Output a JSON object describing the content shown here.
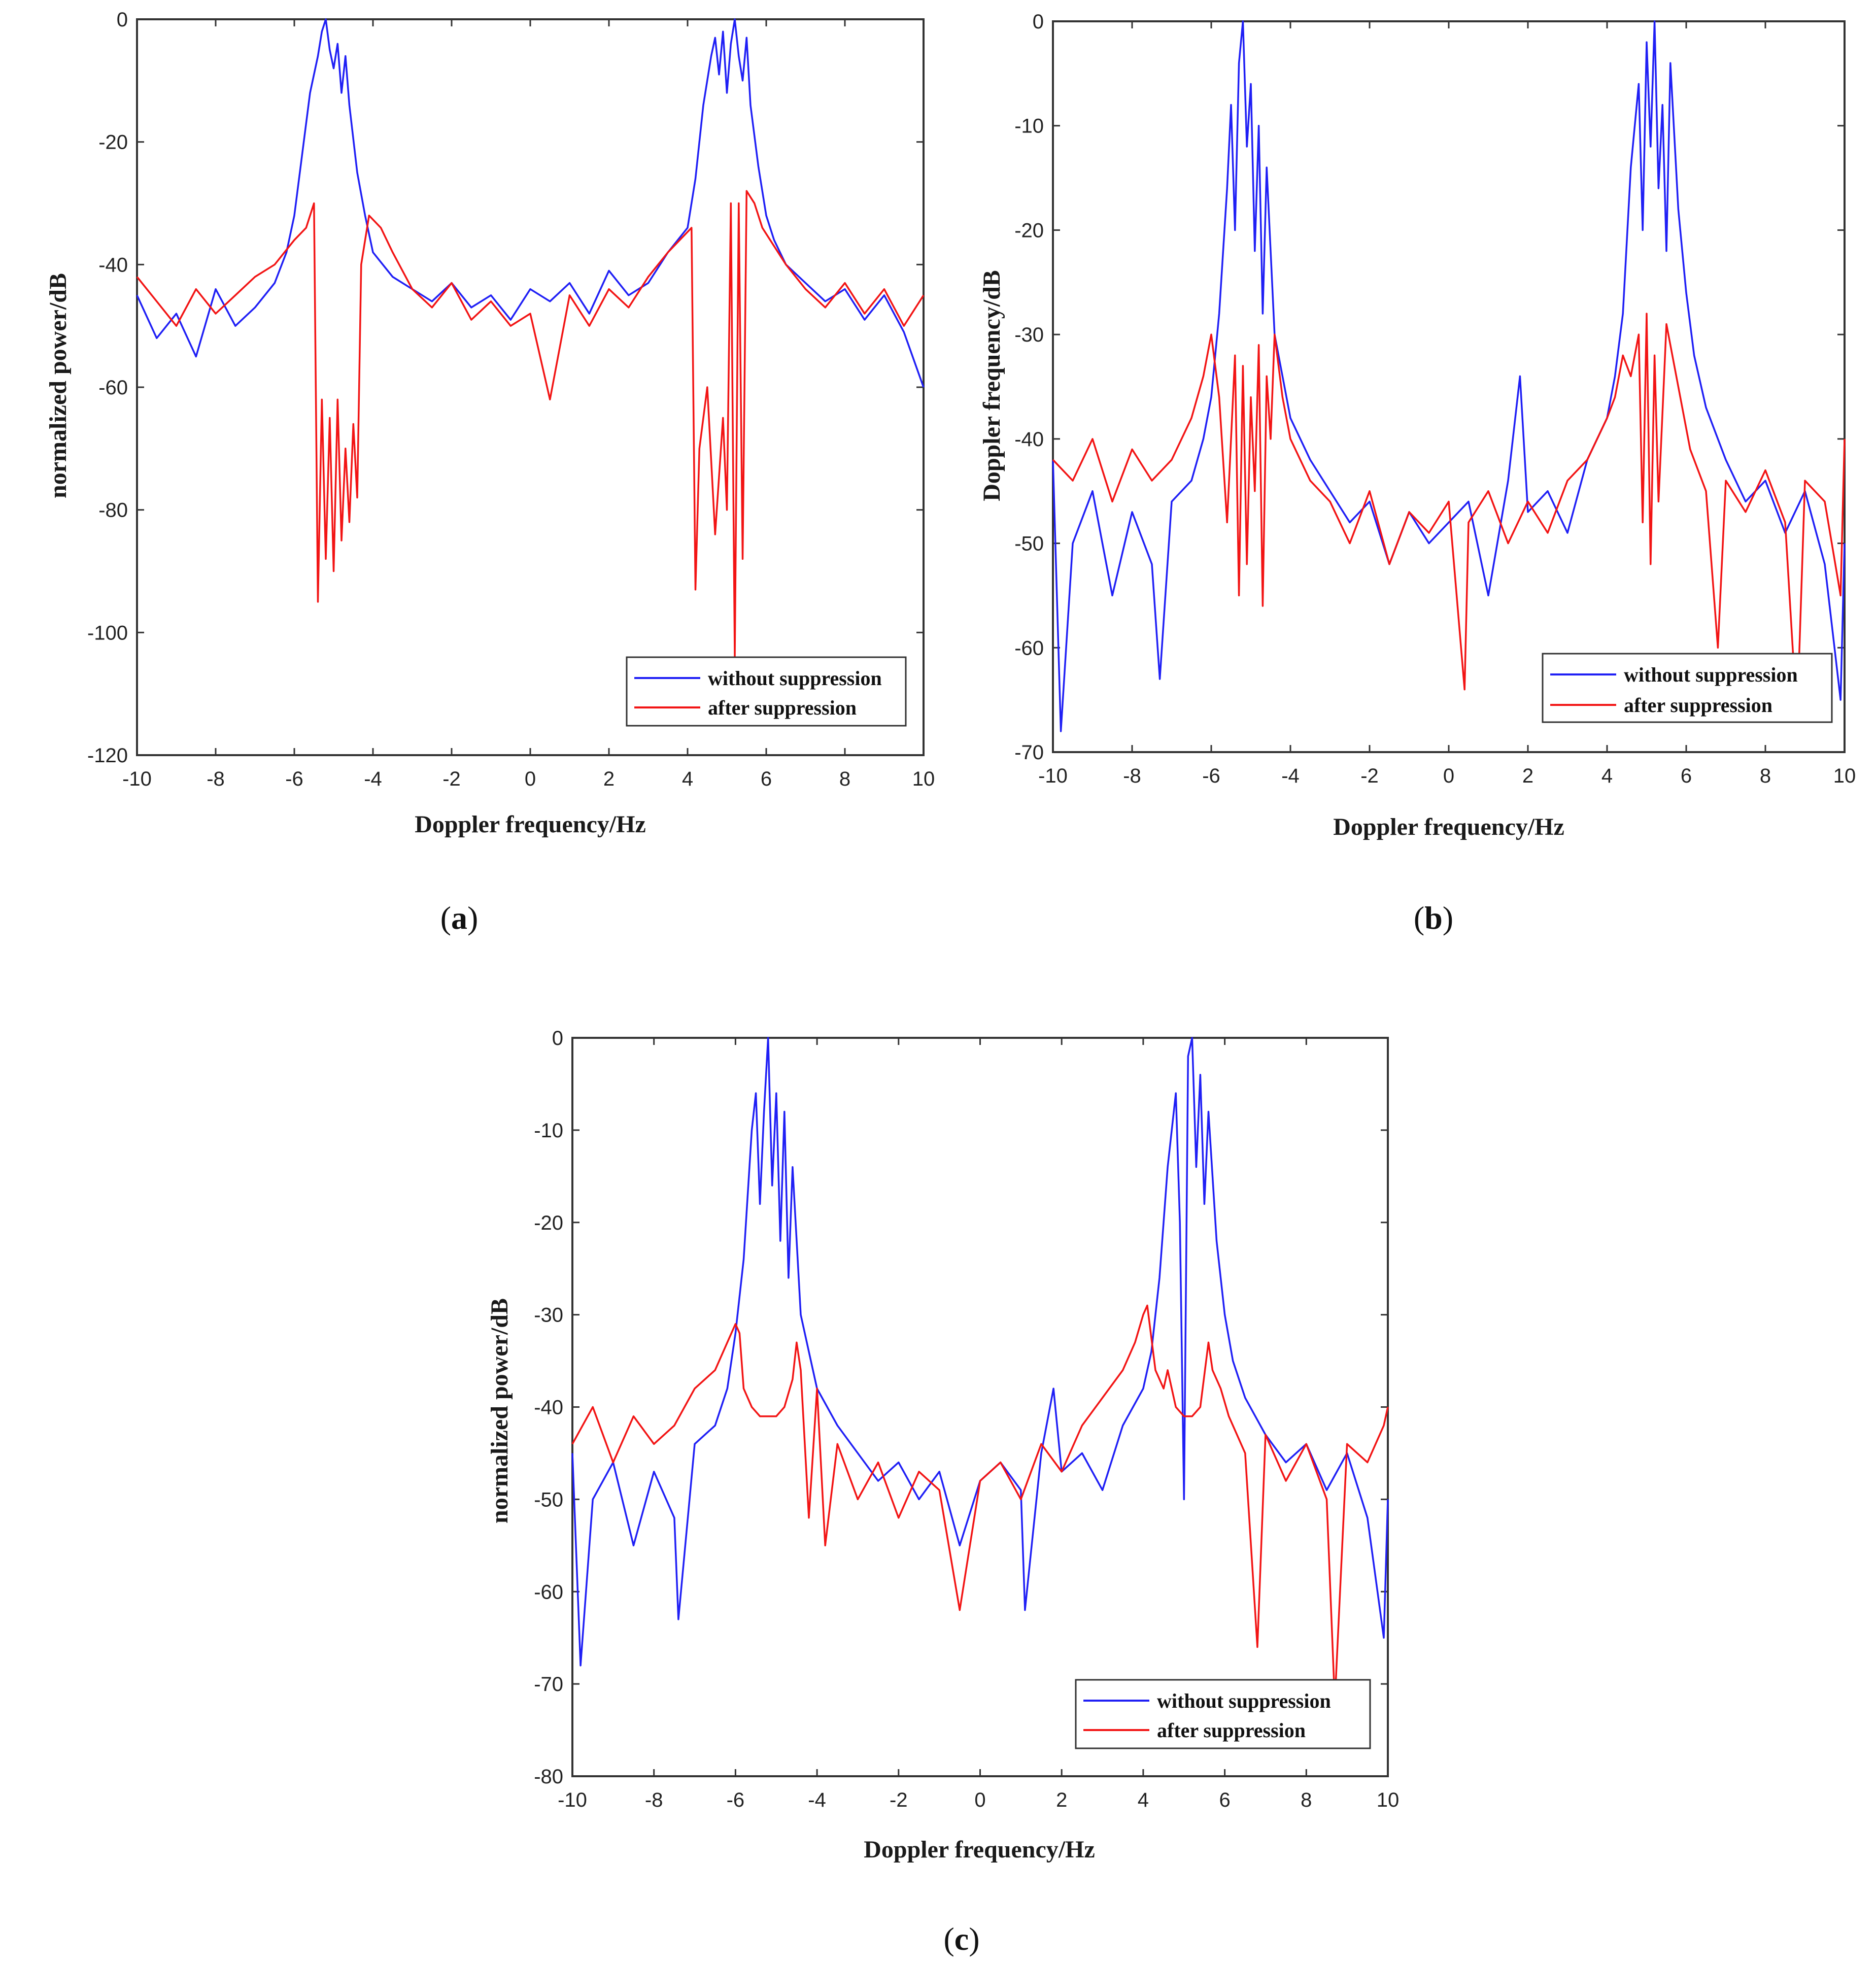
{
  "colors": {
    "without": "#1f1ff5",
    "after": "#f21414",
    "axis": "#333333",
    "grid": "#e6e6e6"
  },
  "chart_data": [
    {
      "type": "line",
      "panel": "a",
      "caption": {
        "open": "(",
        "letter": "a",
        "close": ")"
      },
      "xlabel": "Doppler frequency/Hz",
      "ylabel": "normalized power/dB",
      "xlim": [
        -10,
        10
      ],
      "ylim": [
        -120,
        0
      ],
      "xticks": [
        -10,
        -8,
        -6,
        -4,
        -2,
        0,
        2,
        4,
        6,
        8,
        10
      ],
      "yticks": [
        0,
        -20,
        -40,
        -60,
        -80,
        -100,
        -120
      ],
      "legend": [
        "without suppression",
        "after suppression"
      ],
      "legend_position": "bottom-right",
      "series": [
        {
          "name": "without suppression",
          "x": [
            -10,
            -9.5,
            -9,
            -8.5,
            -8,
            -7.5,
            -7,
            -6.5,
            -6.2,
            -6.0,
            -5.8,
            -5.6,
            -5.4,
            -5.3,
            -5.2,
            -5.1,
            -5.0,
            -4.9,
            -4.8,
            -4.7,
            -4.6,
            -4.4,
            -4.2,
            -4.0,
            -3.5,
            -3,
            -2.5,
            -2,
            -1.5,
            -1,
            -0.5,
            0,
            0.5,
            1,
            1.5,
            2,
            2.5,
            3,
            3.5,
            4.0,
            4.2,
            4.4,
            4.6,
            4.7,
            4.8,
            4.9,
            5.0,
            5.1,
            5.2,
            5.3,
            5.4,
            5.5,
            5.6,
            5.8,
            6.0,
            6.2,
            6.5,
            7,
            7.5,
            8,
            8.5,
            9,
            9.5,
            10
          ],
          "y": [
            -45,
            -52,
            -48,
            -55,
            -44,
            -50,
            -47,
            -43,
            -38,
            -32,
            -22,
            -12,
            -6,
            -2,
            0,
            -5,
            -8,
            -4,
            -12,
            -6,
            -14,
            -25,
            -32,
            -38,
            -42,
            -44,
            -46,
            -43,
            -47,
            -45,
            -49,
            -44,
            -46,
            -43,
            -48,
            -41,
            -45,
            -43,
            -38,
            -34,
            -26,
            -14,
            -6,
            -3,
            -9,
            -2,
            -12,
            -4,
            0,
            -6,
            -10,
            -3,
            -14,
            -24,
            -32,
            -36,
            -40,
            -43,
            -46,
            -44,
            -49,
            -45,
            -51,
            -60
          ]
        },
        {
          "name": "after suppression",
          "x": [
            -10,
            -9.5,
            -9,
            -8.5,
            -8,
            -7.5,
            -7,
            -6.5,
            -6.0,
            -5.7,
            -5.5,
            -5.4,
            -5.3,
            -5.2,
            -5.1,
            -5.0,
            -4.9,
            -4.8,
            -4.7,
            -4.6,
            -4.5,
            -4.4,
            -4.3,
            -4.1,
            -3.8,
            -3.5,
            -3,
            -2.5,
            -2,
            -1.5,
            -1,
            -0.5,
            0,
            0.5,
            1,
            1.5,
            2,
            2.5,
            3,
            3.5,
            3.8,
            4.1,
            4.2,
            4.3,
            4.5,
            4.7,
            4.9,
            5.0,
            5.1,
            5.2,
            5.3,
            5.4,
            5.5,
            5.7,
            5.9,
            6.1,
            6.5,
            7,
            7.5,
            8,
            8.5,
            9,
            9.5,
            10
          ],
          "y": [
            -42,
            -46,
            -50,
            -44,
            -48,
            -45,
            -42,
            -40,
            -36,
            -34,
            -30,
            -95,
            -62,
            -88,
            -65,
            -90,
            -62,
            -85,
            -70,
            -82,
            -66,
            -78,
            -40,
            -32,
            -34,
            -38,
            -44,
            -47,
            -43,
            -49,
            -46,
            -50,
            -48,
            -62,
            -45,
            -50,
            -44,
            -47,
            -42,
            -38,
            -36,
            -34,
            -93,
            -70,
            -60,
            -84,
            -65,
            -80,
            -30,
            -104,
            -30,
            -88,
            -28,
            -30,
            -34,
            -36,
            -40,
            -44,
            -47,
            -43,
            -48,
            -44,
            -50,
            -45
          ]
        }
      ]
    },
    {
      "type": "line",
      "panel": "b",
      "caption": {
        "open": "(",
        "letter": "b",
        "close": ")"
      },
      "xlabel": "Doppler frequency/Hz",
      "ylabel": "Doppler frequency/dB",
      "xlim": [
        -10,
        10
      ],
      "ylim": [
        -70,
        0
      ],
      "xticks": [
        -10,
        -8,
        -6,
        -4,
        -2,
        0,
        2,
        4,
        6,
        8,
        10
      ],
      "yticks": [
        0,
        -10,
        -20,
        -30,
        -40,
        -50,
        -60,
        -70
      ],
      "legend": [
        "without suppression",
        "after suppression"
      ],
      "legend_position": "bottom-right",
      "series": [
        {
          "name": "without suppression",
          "x": [
            -10,
            -9.8,
            -9.5,
            -9,
            -8.5,
            -8,
            -7.5,
            -7.3,
            -7,
            -6.5,
            -6.2,
            -6.0,
            -5.8,
            -5.6,
            -5.5,
            -5.4,
            -5.3,
            -5.2,
            -5.1,
            -5.0,
            -4.9,
            -4.8,
            -4.7,
            -4.6,
            -4.4,
            -4.2,
            -4.0,
            -3.5,
            -3,
            -2.5,
            -2,
            -1.5,
            -1,
            -0.5,
            0,
            0.5,
            1,
            1.5,
            1.8,
            2,
            2.5,
            3,
            3.5,
            4.0,
            4.2,
            4.4,
            4.6,
            4.8,
            4.9,
            5.0,
            5.1,
            5.2,
            5.3,
            5.4,
            5.5,
            5.6,
            5.8,
            6.0,
            6.2,
            6.5,
            7,
            7.5,
            8,
            8.5,
            9,
            9.5,
            9.9,
            10
          ],
          "y": [
            -42,
            -68,
            -50,
            -45,
            -55,
            -47,
            -52,
            -63,
            -46,
            -44,
            -40,
            -36,
            -28,
            -16,
            -8,
            -20,
            -4,
            0,
            -12,
            -6,
            -22,
            -10,
            -28,
            -14,
            -30,
            -34,
            -38,
            -42,
            -45,
            -48,
            -46,
            -52,
            -47,
            -50,
            -48,
            -46,
            -55,
            -44,
            -34,
            -47,
            -45,
            -49,
            -42,
            -38,
            -34,
            -28,
            -14,
            -6,
            -20,
            -2,
            -12,
            0,
            -16,
            -8,
            -22,
            -4,
            -18,
            -26,
            -32,
            -37,
            -42,
            -46,
            -44,
            -49,
            -45,
            -52,
            -65,
            -50
          ]
        },
        {
          "name": "after suppression",
          "x": [
            -10,
            -9.5,
            -9,
            -8.5,
            -8,
            -7.5,
            -7,
            -6.5,
            -6.2,
            -6.0,
            -5.8,
            -5.6,
            -5.4,
            -5.3,
            -5.2,
            -5.1,
            -5.0,
            -4.9,
            -4.8,
            -4.7,
            -4.6,
            -4.5,
            -4.4,
            -4.2,
            -4.0,
            -3.5,
            -3,
            -2.5,
            -2,
            -1.5,
            -1,
            -0.5,
            0,
            0.4,
            0.5,
            1,
            1.5,
            2,
            2.5,
            3,
            3.5,
            4.0,
            4.2,
            4.4,
            4.6,
            4.8,
            4.9,
            5.0,
            5.1,
            5.2,
            5.3,
            5.5,
            5.7,
            5.9,
            6.1,
            6.5,
            6.8,
            7,
            7.5,
            8,
            8.5,
            8.8,
            9,
            9.5,
            9.9,
            10
          ],
          "y": [
            -42,
            -44,
            -40,
            -46,
            -41,
            -44,
            -42,
            -38,
            -34,
            -30,
            -36,
            -48,
            -32,
            -55,
            -33,
            -52,
            -36,
            -45,
            -31,
            -56,
            -34,
            -40,
            -30,
            -36,
            -40,
            -44,
            -46,
            -50,
            -45,
            -52,
            -47,
            -49,
            -46,
            -64,
            -48,
            -45,
            -50,
            -46,
            -49,
            -44,
            -42,
            -38,
            -36,
            -32,
            -34,
            -30,
            -48,
            -28,
            -52,
            -32,
            -46,
            -29,
            -33,
            -37,
            -41,
            -45,
            -60,
            -44,
            -47,
            -43,
            -48,
            -67,
            -44,
            -46,
            -55,
            -40
          ]
        }
      ]
    },
    {
      "type": "line",
      "panel": "c",
      "caption": {
        "open": "(",
        "letter": "c",
        "close": ")"
      },
      "xlabel": "Doppler frequency/Hz",
      "ylabel": "normalized power/dB",
      "xlim": [
        -10,
        10
      ],
      "ylim": [
        -80,
        0
      ],
      "xticks": [
        -10,
        -8,
        -6,
        -4,
        -2,
        0,
        2,
        4,
        6,
        8,
        10
      ],
      "yticks": [
        0,
        -10,
        -20,
        -30,
        -40,
        -50,
        -60,
        -70,
        -80
      ],
      "legend": [
        "without suppression",
        "after suppression"
      ],
      "legend_position": "bottom-right",
      "series": [
        {
          "name": "without suppression",
          "x": [
            -10,
            -9.8,
            -9.5,
            -9,
            -8.5,
            -8,
            -7.5,
            -7.4,
            -7,
            -6.5,
            -6.2,
            -6.0,
            -5.8,
            -5.6,
            -5.5,
            -5.4,
            -5.3,
            -5.2,
            -5.1,
            -5.0,
            -4.9,
            -4.8,
            -4.7,
            -4.6,
            -4.4,
            -4.2,
            -4.0,
            -3.5,
            -3,
            -2.5,
            -2,
            -1.5,
            -1,
            -0.5,
            0,
            0.5,
            1,
            1.1,
            1.5,
            1.8,
            2,
            2.5,
            3,
            3.5,
            4.0,
            4.2,
            4.4,
            4.6,
            4.8,
            4.9,
            5.0,
            5.1,
            5.2,
            5.3,
            5.4,
            5.5,
            5.6,
            5.8,
            6.0,
            6.2,
            6.5,
            7,
            7.5,
            8,
            8.5,
            9,
            9.5,
            9.9,
            10
          ],
          "y": [
            -45,
            -68,
            -50,
            -46,
            -55,
            -47,
            -52,
            -63,
            -44,
            -42,
            -38,
            -32,
            -24,
            -10,
            -6,
            -18,
            -8,
            0,
            -16,
            -6,
            -22,
            -8,
            -26,
            -14,
            -30,
            -34,
            -38,
            -42,
            -45,
            -48,
            -46,
            -50,
            -47,
            -55,
            -48,
            -46,
            -49,
            -62,
            -45,
            -38,
            -47,
            -45,
            -49,
            -42,
            -38,
            -34,
            -26,
            -14,
            -6,
            -20,
            -50,
            -2,
            0,
            -14,
            -4,
            -18,
            -8,
            -22,
            -30,
            -35,
            -39,
            -43,
            -46,
            -44,
            -49,
            -45,
            -52,
            -65,
            -50
          ]
        },
        {
          "name": "after suppression",
          "x": [
            -10,
            -9.5,
            -9,
            -8.5,
            -8,
            -7.5,
            -7,
            -6.5,
            -6.2,
            -6.0,
            -5.9,
            -5.8,
            -5.6,
            -5.4,
            -5.2,
            -5.0,
            -4.8,
            -4.6,
            -4.5,
            -4.4,
            -4.2,
            -4.0,
            -3.8,
            -3.5,
            -3,
            -2.5,
            -2,
            -1.5,
            -1,
            -0.5,
            0,
            0.5,
            1,
            1.5,
            2,
            2.5,
            3,
            3.5,
            3.8,
            4.0,
            4.1,
            4.3,
            4.5,
            4.6,
            4.8,
            5.0,
            5.2,
            5.4,
            5.6,
            5.7,
            5.9,
            6.1,
            6.5,
            6.8,
            7,
            7.5,
            8,
            8.5,
            8.7,
            9,
            9.5,
            9.9,
            10
          ],
          "y": [
            -44,
            -40,
            -46,
            -41,
            -44,
            -42,
            -38,
            -36,
            -33,
            -31,
            -32,
            -38,
            -40,
            -41,
            -41,
            -41,
            -40,
            -37,
            -33,
            -36,
            -52,
            -38,
            -55,
            -44,
            -50,
            -46,
            -52,
            -47,
            -49,
            -62,
            -48,
            -46,
            -50,
            -44,
            -47,
            -42,
            -39,
            -36,
            -33,
            -30,
            -29,
            -36,
            -38,
            -36,
            -40,
            -41,
            -41,
            -40,
            -33,
            -36,
            -38,
            -41,
            -45,
            -66,
            -43,
            -48,
            -44,
            -50,
            -72,
            -44,
            -46,
            -42,
            -40
          ]
        }
      ]
    }
  ]
}
